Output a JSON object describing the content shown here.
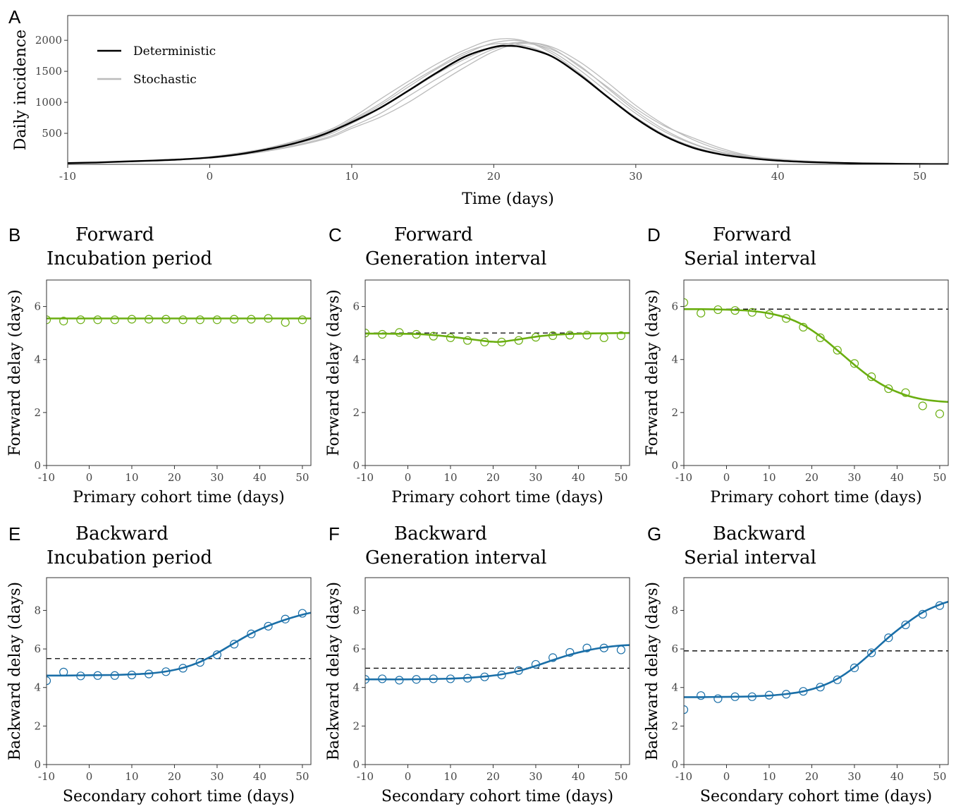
{
  "chart_data": [
    {
      "panel": "A",
      "type": "line",
      "xlabel": "Time (days)",
      "ylabel": "Daily incidence",
      "xlim": [
        -10,
        52
      ],
      "ylim": [
        0,
        2400
      ],
      "xticks": [
        -10,
        0,
        10,
        20,
        30,
        40,
        50
      ],
      "yticks": [
        500,
        1000,
        1500,
        2000
      ],
      "legend": {
        "position": "top-left",
        "entries": [
          {
            "name": "Deterministic",
            "color": "#000000"
          },
          {
            "name": "Stochastic",
            "color": "#bbbbbb"
          }
        ]
      },
      "deterministic": {
        "x": [
          -10,
          -8,
          -6,
          -4,
          -2,
          0,
          2,
          4,
          6,
          8,
          10,
          12,
          14,
          16,
          18,
          20,
          21,
          22,
          24,
          26,
          28,
          30,
          32,
          34,
          36,
          38,
          40,
          42,
          44,
          46,
          48,
          50,
          52
        ],
        "y": [
          20,
          30,
          45,
          60,
          80,
          110,
          160,
          240,
          340,
          480,
          680,
          910,
          1190,
          1480,
          1740,
          1890,
          1910,
          1890,
          1750,
          1450,
          1090,
          740,
          460,
          270,
          160,
          100,
          60,
          38,
          25,
          15,
          10,
          6,
          4
        ]
      },
      "stochastic": [
        {
          "x": [
            0,
            4,
            8,
            10,
            12,
            14,
            16,
            18,
            20,
            22,
            24,
            26,
            28,
            30,
            32,
            34,
            36,
            38,
            40,
            44,
            48,
            52
          ],
          "y": [
            110,
            240,
            470,
            700,
            950,
            1250,
            1540,
            1780,
            1960,
            1990,
            1830,
            1530,
            1170,
            820,
            530,
            330,
            190,
            110,
            70,
            28,
            10,
            4
          ]
        },
        {
          "x": [
            0,
            4,
            8,
            10,
            12,
            14,
            16,
            18,
            20,
            22,
            24,
            26,
            28,
            30,
            32,
            34,
            36,
            38,
            40,
            44,
            48,
            52
          ],
          "y": [
            100,
            220,
            420,
            610,
            820,
            1100,
            1380,
            1640,
            1860,
            1950,
            1860,
            1600,
            1230,
            860,
            560,
            340,
            200,
            120,
            70,
            26,
            9,
            3
          ]
        },
        {
          "x": [
            0,
            4,
            8,
            10,
            12,
            14,
            16,
            18,
            20,
            22,
            24,
            26,
            28,
            30,
            32,
            34,
            36,
            38,
            40,
            44,
            48,
            52
          ],
          "y": [
            120,
            260,
            520,
            750,
            1050,
            1340,
            1620,
            1850,
            2010,
            2000,
            1800,
            1480,
            1100,
            760,
            480,
            290,
            170,
            100,
            60,
            24,
            8,
            3
          ]
        },
        {
          "x": [
            0,
            4,
            8,
            10,
            12,
            14,
            16,
            18,
            20,
            22,
            24,
            26,
            28,
            30,
            32,
            34,
            36,
            38,
            40,
            44,
            48,
            52
          ],
          "y": [
            95,
            210,
            400,
            580,
            760,
            1000,
            1290,
            1570,
            1820,
            1960,
            1900,
            1660,
            1320,
            950,
            640,
            400,
            230,
            130,
            80,
            30,
            10,
            4
          ]
        },
        {
          "x": [
            0,
            4,
            8,
            10,
            12,
            14,
            16,
            18,
            20,
            22,
            24,
            26,
            28,
            30,
            32,
            34,
            36,
            38,
            40,
            44,
            48,
            52
          ],
          "y": [
            115,
            250,
            500,
            720,
            980,
            1290,
            1560,
            1810,
            1940,
            1920,
            1760,
            1460,
            1080,
            740,
            470,
            280,
            160,
            95,
            55,
            22,
            8,
            3
          ]
        },
        {
          "x": [
            0,
            4,
            8,
            10,
            12,
            14,
            16,
            18,
            20,
            22,
            24,
            26,
            28,
            30,
            32,
            34,
            36,
            38,
            40,
            44,
            48,
            52
          ],
          "y": [
            105,
            230,
            450,
            660,
            900,
            1180,
            1460,
            1700,
            1890,
            1970,
            1880,
            1580,
            1250,
            900,
            620,
            430,
            260,
            140,
            85,
            32,
            11,
            4
          ]
        }
      ]
    },
    {
      "panel": "B",
      "type": "line",
      "title_top": "Forward",
      "title_bottom": "Incubation period",
      "xlabel": "Primary cohort time (days)",
      "ylabel": "Forward delay (days)",
      "xlim": [
        -10,
        52
      ],
      "ylim": [
        0,
        7
      ],
      "xticks": [
        -10,
        0,
        10,
        20,
        30,
        40,
        50
      ],
      "yticks": [
        0,
        2,
        4,
        6
      ],
      "reference": 5.55,
      "curve": {
        "x": [
          -10,
          52
        ],
        "y": [
          5.55,
          5.55
        ]
      },
      "points": {
        "x": [
          -10,
          -6,
          -2,
          2,
          6,
          10,
          14,
          18,
          22,
          26,
          30,
          34,
          38,
          42,
          46,
          50
        ],
        "y": [
          5.5,
          5.45,
          5.5,
          5.5,
          5.5,
          5.52,
          5.52,
          5.52,
          5.5,
          5.5,
          5.5,
          5.52,
          5.52,
          5.55,
          5.4,
          5.5
        ]
      },
      "color": "#6aae10"
    },
    {
      "panel": "C",
      "type": "line",
      "title_top": "Forward",
      "title_bottom": "Generation interval",
      "xlabel": "Primary cohort time (days)",
      "ylabel": "Forward delay (days)",
      "xlim": [
        -10,
        52
      ],
      "ylim": [
        0,
        7
      ],
      "xticks": [
        -10,
        0,
        10,
        20,
        30,
        40,
        50
      ],
      "yticks": [
        0,
        2,
        4,
        6
      ],
      "reference": 5.0,
      "curve": {
        "x": [
          -10,
          -2,
          2,
          6,
          10,
          14,
          18,
          20,
          22,
          26,
          30,
          34,
          38,
          42,
          46,
          52
        ],
        "y": [
          4.98,
          4.97,
          4.96,
          4.92,
          4.86,
          4.78,
          4.7,
          4.67,
          4.67,
          4.76,
          4.86,
          4.93,
          4.96,
          4.98,
          4.99,
          5.0
        ]
      },
      "points": {
        "x": [
          -10,
          -6,
          -2,
          2,
          6,
          10,
          14,
          18,
          22,
          26,
          30,
          34,
          38,
          42,
          46,
          50
        ],
        "y": [
          5.0,
          4.95,
          5.02,
          4.95,
          4.88,
          4.82,
          4.72,
          4.66,
          4.66,
          4.72,
          4.84,
          4.9,
          4.92,
          4.92,
          4.82,
          4.9
        ]
      },
      "color": "#6aae10"
    },
    {
      "panel": "D",
      "type": "line",
      "title_top": "Forward",
      "title_bottom": "Serial interval",
      "xlabel": "Primary cohort time (days)",
      "ylabel": "Forward delay (days)",
      "xlim": [
        -10,
        52
      ],
      "ylim": [
        0,
        7
      ],
      "xticks": [
        -10,
        0,
        10,
        20,
        30,
        40,
        50
      ],
      "yticks": [
        0,
        2,
        4,
        6
      ],
      "reference": 5.9,
      "curve": {
        "x": [
          -10,
          -6,
          -2,
          2,
          6,
          10,
          14,
          18,
          22,
          26,
          30,
          34,
          38,
          42,
          46,
          50,
          52
        ],
        "y": [
          5.9,
          5.9,
          5.89,
          5.87,
          5.83,
          5.74,
          5.58,
          5.3,
          4.88,
          4.35,
          3.8,
          3.3,
          2.92,
          2.66,
          2.5,
          2.42,
          2.4
        ]
      },
      "points": {
        "x": [
          -10,
          -6,
          -2,
          2,
          6,
          10,
          14,
          18,
          22,
          26,
          30,
          34,
          38,
          42,
          46,
          50
        ],
        "y": [
          6.15,
          5.75,
          5.88,
          5.85,
          5.78,
          5.7,
          5.55,
          5.22,
          4.82,
          4.35,
          3.85,
          3.35,
          2.9,
          2.75,
          2.25,
          1.95
        ]
      },
      "color": "#6aae10"
    },
    {
      "panel": "E",
      "type": "line",
      "title_top": "Backward",
      "title_bottom": "Incubation period",
      "xlabel": "Secondary cohort time (days)",
      "ylabel": "Backward delay (days)",
      "xlim": [
        -10,
        52
      ],
      "ylim": [
        0,
        9.7
      ],
      "xticks": [
        -10,
        0,
        10,
        20,
        30,
        40,
        50
      ],
      "yticks": [
        0,
        2,
        4,
        6,
        8
      ],
      "reference": 5.5,
      "curve": {
        "x": [
          -10,
          -6,
          -2,
          2,
          6,
          10,
          14,
          18,
          22,
          26,
          30,
          34,
          38,
          42,
          46,
          50,
          52
        ],
        "y": [
          4.62,
          4.62,
          4.63,
          4.64,
          4.65,
          4.68,
          4.73,
          4.83,
          5.02,
          5.33,
          5.78,
          6.3,
          6.8,
          7.2,
          7.52,
          7.78,
          7.88
        ]
      },
      "points": {
        "x": [
          -10,
          -6,
          -2,
          2,
          6,
          10,
          14,
          18,
          22,
          26,
          30,
          34,
          38,
          42,
          46,
          50
        ],
        "y": [
          4.35,
          4.8,
          4.6,
          4.62,
          4.62,
          4.65,
          4.7,
          4.82,
          5.0,
          5.3,
          5.7,
          6.25,
          6.78,
          7.18,
          7.55,
          7.85
        ]
      },
      "color": "#1a6fa8"
    },
    {
      "panel": "F",
      "type": "line",
      "title_top": "Backward",
      "title_bottom": "Generation interval",
      "xlabel": "Secondary cohort time (days)",
      "ylabel": "Backward delay (days)",
      "xlim": [
        -10,
        52
      ],
      "ylim": [
        0,
        9.7
      ],
      "xticks": [
        -10,
        0,
        10,
        20,
        30,
        40,
        50
      ],
      "yticks": [
        0,
        2,
        4,
        6,
        8
      ],
      "reference": 5.0,
      "curve": {
        "x": [
          -10,
          -6,
          -2,
          2,
          6,
          10,
          14,
          18,
          22,
          26,
          30,
          34,
          38,
          42,
          46,
          50,
          52
        ],
        "y": [
          4.42,
          4.42,
          4.42,
          4.43,
          4.44,
          4.46,
          4.5,
          4.57,
          4.68,
          4.86,
          5.12,
          5.42,
          5.7,
          5.92,
          6.08,
          6.18,
          6.2
        ]
      },
      "points": {
        "x": [
          -10,
          -6,
          -2,
          2,
          6,
          10,
          14,
          18,
          22,
          26,
          30,
          34,
          38,
          42,
          46,
          50
        ],
        "y": [
          4.42,
          4.45,
          4.38,
          4.42,
          4.45,
          4.45,
          4.48,
          4.55,
          4.65,
          4.88,
          5.2,
          5.55,
          5.82,
          6.05,
          6.05,
          5.95
        ]
      },
      "color": "#1a6fa8"
    },
    {
      "panel": "G",
      "type": "line",
      "title_top": "Backward",
      "title_bottom": "Serial interval",
      "xlabel": "Secondary cohort time (days)",
      "ylabel": "Backward delay (days)",
      "xlim": [
        -10,
        52
      ],
      "ylim": [
        0,
        9.7
      ],
      "xticks": [
        -10,
        0,
        10,
        20,
        30,
        40,
        50
      ],
      "yticks": [
        0,
        2,
        4,
        6,
        8
      ],
      "reference": 5.9,
      "curve": {
        "x": [
          -10,
          -6,
          -2,
          2,
          6,
          10,
          14,
          18,
          22,
          26,
          30,
          34,
          38,
          42,
          46,
          50,
          52
        ],
        "y": [
          3.5,
          3.5,
          3.51,
          3.52,
          3.54,
          3.58,
          3.66,
          3.8,
          4.05,
          4.45,
          5.05,
          5.8,
          6.6,
          7.3,
          7.9,
          8.3,
          8.45
        ]
      },
      "points": {
        "x": [
          -10,
          -6,
          -2,
          2,
          6,
          10,
          14,
          18,
          22,
          26,
          30,
          34,
          38,
          42,
          46,
          50
        ],
        "y": [
          2.85,
          3.58,
          3.42,
          3.52,
          3.52,
          3.6,
          3.65,
          3.8,
          4.02,
          4.4,
          5.02,
          5.8,
          6.58,
          7.25,
          7.8,
          8.25
        ]
      },
      "color": "#1a6fa8"
    }
  ]
}
